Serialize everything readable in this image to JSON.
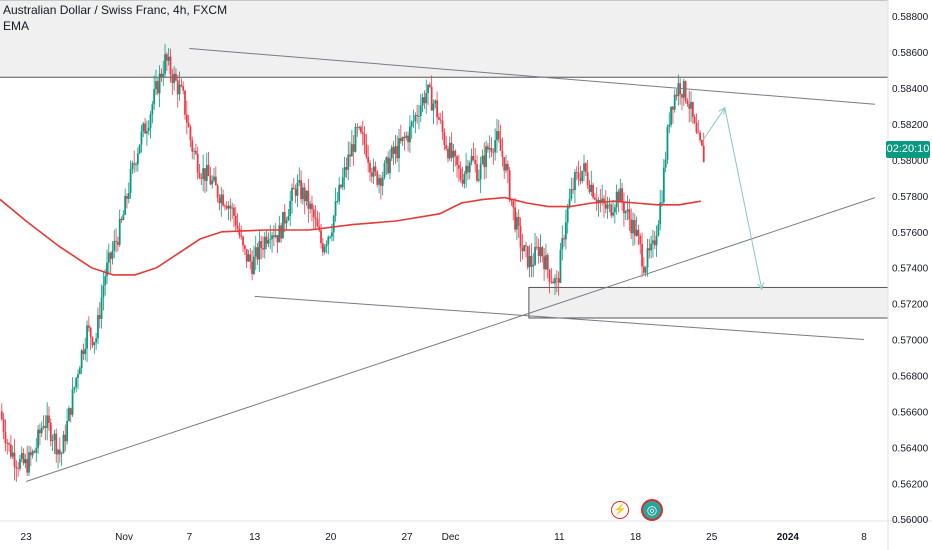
{
  "legend": {
    "title": "Australian Dollar / Swiss Franc, 4h, FXCM",
    "indicator": "EMA"
  },
  "price_badge": "02:20:10",
  "icons": {
    "event_1": "lightning-icon",
    "event_2": "globe-icon"
  },
  "colors": {
    "up": "#089981",
    "down": "#f23645",
    "ema": "#e53935",
    "projection": "#80cbc4",
    "zone": "#f0f0f0"
  },
  "chart_data": {
    "type": "candlestick",
    "title": "",
    "xlabel": "",
    "ylabel": "",
    "ylim": [
      0.5599,
      0.5889
    ],
    "y_ticks": [
      "0.58800",
      "0.58600",
      "0.58400",
      "0.58200",
      "0.58000",
      "0.57800",
      "0.57600",
      "0.57400",
      "0.57200",
      "0.57000",
      "0.56800",
      "0.56600",
      "0.56400",
      "0.56200",
      "0.56000"
    ],
    "x_ticks": [
      {
        "label": "23",
        "day": 0
      },
      {
        "label": "Nov",
        "day": 9
      },
      {
        "label": "7",
        "day": 15
      },
      {
        "label": "13",
        "day": 21
      },
      {
        "label": "20",
        "day": 28
      },
      {
        "label": "27",
        "day": 35
      },
      {
        "label": "Dec",
        "day": 39
      },
      {
        "label": "11",
        "day": 49
      },
      {
        "label": "18",
        "day": 56
      },
      {
        "label": "25",
        "day": 63
      },
      {
        "label": "2024",
        "day": 70
      },
      {
        "label": "8",
        "day": 77
      }
    ],
    "x_range_days": [
      -2.4,
      79.2
    ],
    "close_series": [
      [
        -2.4,
        0.566
      ],
      [
        -1.6,
        0.564
      ],
      [
        -0.8,
        0.5632
      ],
      [
        0.0,
        0.563
      ],
      [
        0.8,
        0.5638
      ],
      [
        1.6,
        0.5655
      ],
      [
        2.4,
        0.5648
      ],
      [
        3.2,
        0.5635
      ],
      [
        4.0,
        0.566
      ],
      [
        4.8,
        0.5685
      ],
      [
        5.6,
        0.5705
      ],
      [
        6.4,
        0.57
      ],
      [
        7.2,
        0.5735
      ],
      [
        8.0,
        0.575
      ],
      [
        8.8,
        0.5765
      ],
      [
        9.6,
        0.579
      ],
      [
        10.4,
        0.581
      ],
      [
        11.2,
        0.5822
      ],
      [
        12.0,
        0.584
      ],
      [
        12.8,
        0.5856
      ],
      [
        13.6,
        0.5845
      ],
      [
        14.4,
        0.5835
      ],
      [
        15.2,
        0.5808
      ],
      [
        16.0,
        0.5795
      ],
      [
        16.8,
        0.579
      ],
      [
        17.6,
        0.5782
      ],
      [
        18.4,
        0.5778
      ],
      [
        19.2,
        0.5768
      ],
      [
        20.0,
        0.5748
      ],
      [
        20.8,
        0.5742
      ],
      [
        21.6,
        0.5752
      ],
      [
        22.4,
        0.5762
      ],
      [
        23.2,
        0.5758
      ],
      [
        24.0,
        0.5772
      ],
      [
        24.8,
        0.5785
      ],
      [
        25.6,
        0.578
      ],
      [
        26.4,
        0.5768
      ],
      [
        27.2,
        0.5752
      ],
      [
        28.0,
        0.5762
      ],
      [
        28.8,
        0.5782
      ],
      [
        29.6,
        0.58
      ],
      [
        30.4,
        0.5815
      ],
      [
        31.2,
        0.5808
      ],
      [
        32.0,
        0.579
      ],
      [
        32.8,
        0.5792
      ],
      [
        33.6,
        0.5802
      ],
      [
        34.4,
        0.5808
      ],
      [
        35.2,
        0.5815
      ],
      [
        36.0,
        0.5828
      ],
      [
        36.8,
        0.5838
      ],
      [
        37.6,
        0.583
      ],
      [
        38.4,
        0.5812
      ],
      [
        39.2,
        0.58
      ],
      [
        40.0,
        0.579
      ],
      [
        40.8,
        0.5802
      ],
      [
        41.6,
        0.5792
      ],
      [
        42.4,
        0.5806
      ],
      [
        43.2,
        0.5812
      ],
      [
        44.0,
        0.5798
      ],
      [
        44.8,
        0.577
      ],
      [
        45.6,
        0.575
      ],
      [
        46.4,
        0.5742
      ],
      [
        47.2,
        0.5752
      ],
      [
        48.0,
        0.5738
      ],
      [
        48.8,
        0.573
      ],
      [
        49.6,
        0.5768
      ],
      [
        50.4,
        0.5788
      ],
      [
        51.2,
        0.5795
      ],
      [
        52.0,
        0.5785
      ],
      [
        52.8,
        0.5775
      ],
      [
        53.6,
        0.5772
      ],
      [
        54.4,
        0.5782
      ],
      [
        55.2,
        0.577
      ],
      [
        56.0,
        0.576
      ],
      [
        56.8,
        0.5742
      ],
      [
        57.6,
        0.575
      ],
      [
        58.4,
        0.578
      ],
      [
        59.2,
        0.583
      ],
      [
        60.0,
        0.5842
      ],
      [
        60.8,
        0.5835
      ],
      [
        61.6,
        0.5812
      ],
      [
        62.4,
        0.58
      ]
    ],
    "ema": [
      [
        -2.4,
        0.5778
      ],
      [
        0,
        0.5766
      ],
      [
        3,
        0.5752
      ],
      [
        6,
        0.574
      ],
      [
        8,
        0.5736
      ],
      [
        10,
        0.5736
      ],
      [
        12,
        0.574
      ],
      [
        14,
        0.5748
      ],
      [
        16,
        0.5756
      ],
      [
        18,
        0.576
      ],
      [
        22,
        0.5761
      ],
      [
        26,
        0.5761
      ],
      [
        30,
        0.5764
      ],
      [
        34,
        0.5766
      ],
      [
        38,
        0.577
      ],
      [
        40,
        0.5776
      ],
      [
        42,
        0.5778
      ],
      [
        44,
        0.5779
      ],
      [
        46,
        0.5776
      ],
      [
        48,
        0.5774
      ],
      [
        50,
        0.5774
      ],
      [
        52,
        0.5776
      ],
      [
        54,
        0.5777
      ],
      [
        56,
        0.5776
      ],
      [
        58,
        0.5775
      ],
      [
        60,
        0.5775
      ],
      [
        62,
        0.5777
      ]
    ],
    "trendlines": [
      {
        "from": [
          15,
          0.5862
        ],
        "to": [
          78,
          0.5831
        ]
      },
      {
        "from": [
          21,
          0.5724
        ],
        "to": [
          77,
          0.57
        ]
      },
      {
        "from": [
          0,
          0.5621
        ],
        "to": [
          78,
          0.5779
        ]
      }
    ],
    "resistance_zone": {
      "x_from": -2.4,
      "x_to": 79.2,
      "y_from": 0.5846,
      "y_to": 0.5889
    },
    "support_zone": {
      "x_from": 46.2,
      "x_to": 79.2,
      "y_from": 0.5712,
      "y_to": 0.5729
    },
    "projection": [
      [
        62.2,
        0.5811
      ],
      [
        64.2,
        0.5829
      ],
      [
        67.6,
        0.5728
      ]
    ]
  }
}
